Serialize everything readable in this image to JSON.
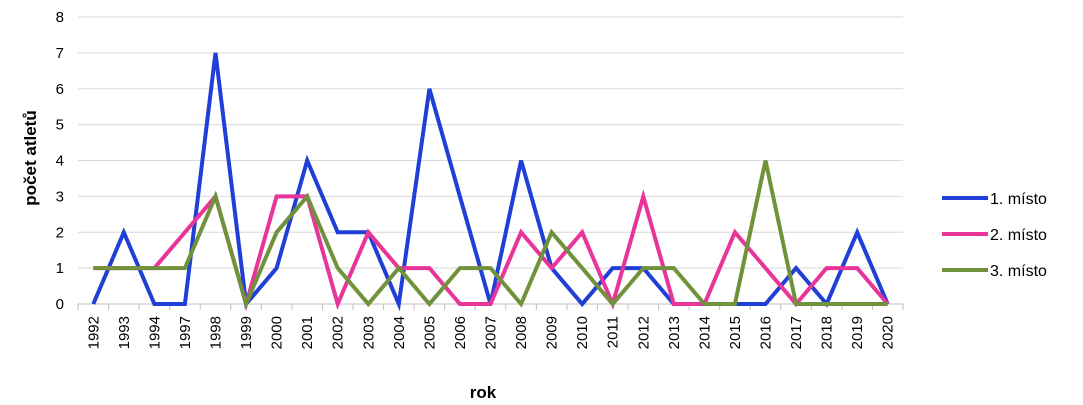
{
  "chart_data": {
    "type": "line",
    "xlabel": "rok",
    "ylabel": "počet atletů",
    "ylim": [
      0,
      8
    ],
    "yticks": [
      0,
      1,
      2,
      3,
      4,
      5,
      6,
      7,
      8
    ],
    "grid": "horizontal",
    "legend_position": "right",
    "categories": [
      "1992",
      "1993",
      "1994",
      "1997",
      "1998",
      "1999",
      "2000",
      "2001",
      "2002",
      "2003",
      "2004",
      "2005",
      "2006",
      "2007",
      "2008",
      "2009",
      "2010",
      "2011",
      "2012",
      "2013",
      "2014",
      "2015",
      "2016",
      "2017",
      "2018",
      "2019",
      "2020"
    ],
    "series": [
      {
        "name": "1. místo",
        "color": "#1f3fd6",
        "values": [
          0,
          2,
          0,
          0,
          7,
          0,
          1,
          4,
          2,
          2,
          0,
          6,
          3,
          0,
          4,
          1,
          0,
          1,
          1,
          0,
          0,
          0,
          0,
          1,
          0,
          2,
          0
        ]
      },
      {
        "name": "2. místo",
        "color": "#e8359a",
        "values": [
          1,
          1,
          1,
          2,
          3,
          0,
          3,
          3,
          0,
          2,
          1,
          1,
          0,
          0,
          2,
          1,
          2,
          0,
          3,
          0,
          0,
          2,
          1,
          0,
          1,
          1,
          0
        ]
      },
      {
        "name": "3. místo",
        "color": "#70923a",
        "values": [
          1,
          1,
          1,
          1,
          3,
          0,
          2,
          3,
          1,
          0,
          1,
          0,
          1,
          1,
          0,
          2,
          1,
          0,
          1,
          1,
          0,
          0,
          4,
          0,
          0,
          0,
          0
        ]
      }
    ]
  }
}
